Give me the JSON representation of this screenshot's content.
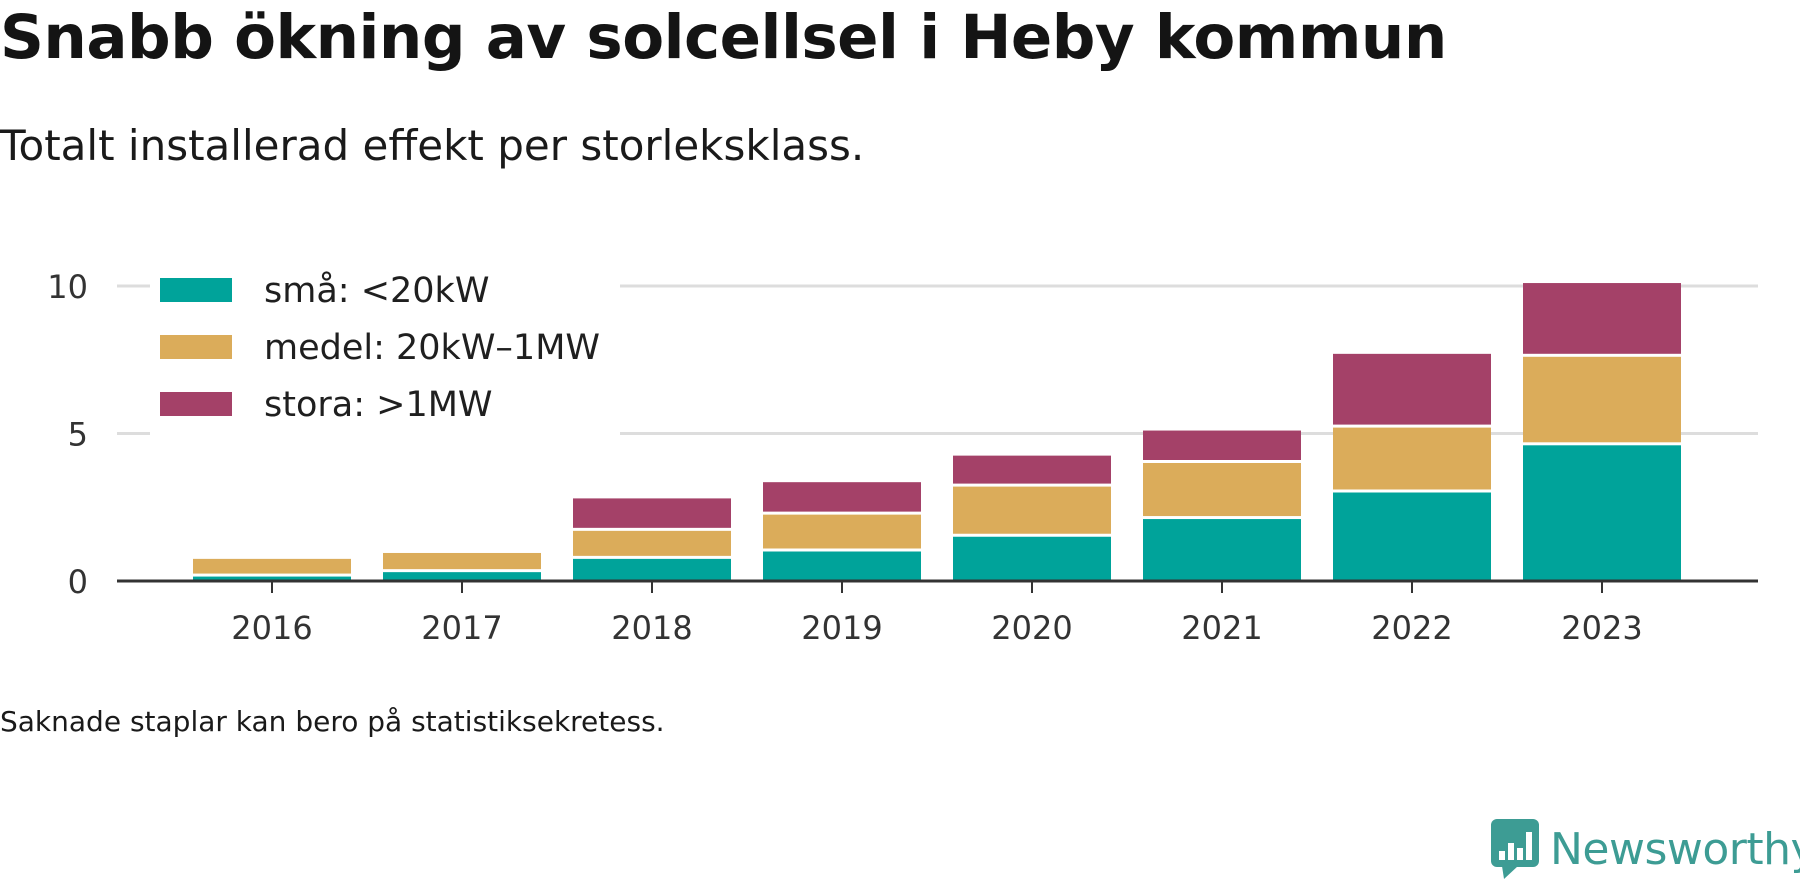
{
  "header": {
    "title": "Snabb ökning av solcellsel i Heby kommun",
    "subtitle": "Totalt installerad effekt per storleksklass."
  },
  "footnote": "Saknade staplar kan bero på statistiksekretess.",
  "brand": {
    "name": "Newsworthy",
    "icon": "newsworthy-logo-icon",
    "color": "#3d9c94"
  },
  "chart_data": {
    "type": "bar",
    "stacked": true,
    "categories": [
      "2016",
      "2017",
      "2018",
      "2019",
      "2020",
      "2021",
      "2022",
      "2023"
    ],
    "series": [
      {
        "name": "små: <20kW",
        "color": "#00a39a",
        "values": [
          0.15,
          0.3,
          0.75,
          1.0,
          1.5,
          2.1,
          3.0,
          4.6
        ]
      },
      {
        "name": "medel: 20kW–1MW",
        "color": "#dbac5a",
        "values": [
          0.6,
          0.65,
          0.95,
          1.25,
          1.7,
          1.9,
          2.2,
          3.0
        ]
      },
      {
        "name": "stora: >1MW",
        "color": "#a44168",
        "values": [
          0,
          0,
          1.1,
          1.1,
          1.05,
          1.1,
          2.5,
          2.5
        ]
      }
    ],
    "ylim": [
      0,
      10.5
    ],
    "yticks": [
      0,
      5,
      10
    ],
    "grid": true,
    "legend_position": "top-left"
  }
}
